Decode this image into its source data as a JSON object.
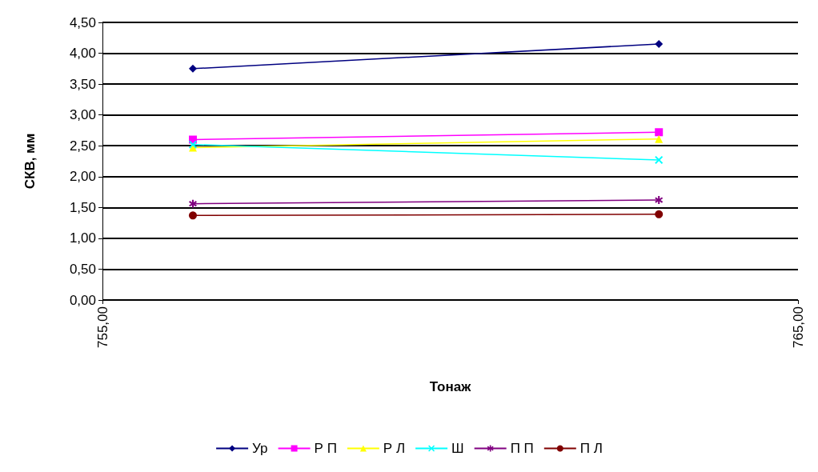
{
  "chart_data": {
    "type": "line",
    "xlabel": "Тонаж",
    "ylabel": "СКВ, мм",
    "xlim": [
      755,
      765
    ],
    "xticks": [
      {
        "value": 755,
        "label": "755,00"
      },
      {
        "value": 765,
        "label": "765,00"
      }
    ],
    "ylim": [
      0,
      4.5
    ],
    "yticks": [
      {
        "value": 0,
        "label": "0,00"
      },
      {
        "value": 0.5,
        "label": "0,50"
      },
      {
        "value": 1,
        "label": "1,00"
      },
      {
        "value": 1.5,
        "label": "1,50"
      },
      {
        "value": 2,
        "label": "2,00"
      },
      {
        "value": 2.5,
        "label": "2,50"
      },
      {
        "value": 3,
        "label": "3,00"
      },
      {
        "value": 3.5,
        "label": "3,50"
      },
      {
        "value": 4,
        "label": "4,00"
      },
      {
        "value": 4.5,
        "label": "4,50"
      }
    ],
    "grid": "y",
    "legend": "bottom",
    "x": [
      756.3,
      763.0
    ],
    "series": [
      {
        "name": "Ур",
        "color": "#000080",
        "marker": "diamond",
        "values": [
          3.75,
          4.15
        ]
      },
      {
        "name": "Р П",
        "color": "#ff00ff",
        "marker": "square",
        "values": [
          2.6,
          2.72
        ]
      },
      {
        "name": "Р Л",
        "color": "#ffff00",
        "marker": "triangle",
        "values": [
          2.47,
          2.61
        ]
      },
      {
        "name": "Ш",
        "color": "#00ffff",
        "marker": "cross",
        "values": [
          2.52,
          2.27
        ]
      },
      {
        "name": "П П",
        "color": "#800080",
        "marker": "star",
        "values": [
          1.56,
          1.62
        ]
      },
      {
        "name": "П Л",
        "color": "#800000",
        "marker": "circle",
        "values": [
          1.37,
          1.39
        ]
      }
    ]
  }
}
